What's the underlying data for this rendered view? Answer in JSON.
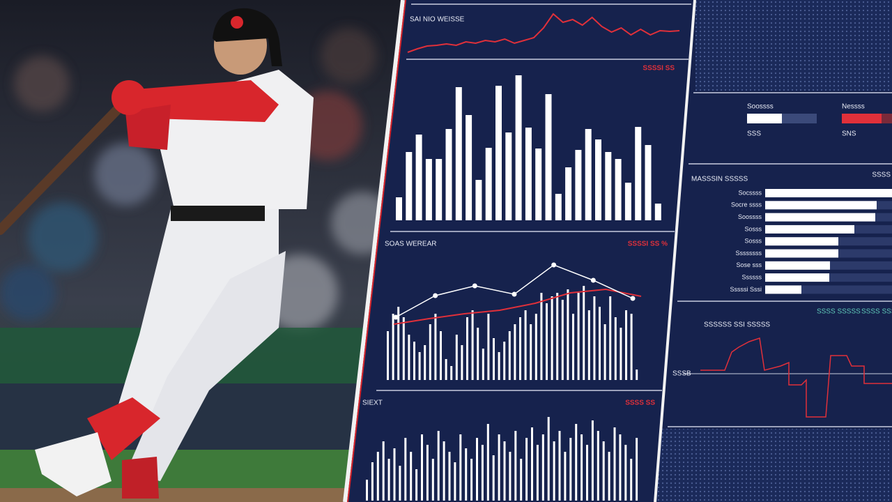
{
  "trend_panel": {
    "title": "SAI NIO WEISSE",
    "values": [
      5,
      10,
      14,
      15,
      17,
      15,
      20,
      18,
      22,
      20,
      24,
      18,
      22,
      26,
      40,
      60,
      48,
      52,
      44,
      55,
      42,
      34,
      40,
      30,
      38,
      30,
      36,
      35,
      36
    ]
  },
  "bar_panel": {
    "label": "SSSSI SS",
    "values": [
      33,
      98,
      123,
      88,
      88,
      131,
      191,
      151,
      58,
      104,
      193,
      126,
      208,
      133,
      103,
      181,
      38,
      76,
      101,
      131,
      116,
      98,
      88,
      54,
      134,
      108,
      24
    ]
  },
  "combo_panel": {
    "title": "SOAS WEREAR",
    "label": "SSSSI SS %",
    "bars": [
      70,
      95,
      105,
      90,
      65,
      55,
      40,
      50,
      80,
      95,
      70,
      30,
      20,
      65,
      50,
      90,
      100,
      75,
      45,
      95,
      60,
      40,
      55,
      70,
      80,
      90,
      100,
      80,
      95,
      125,
      110,
      120,
      125,
      115,
      130,
      95,
      125,
      135,
      100,
      120,
      105,
      80,
      120,
      90,
      75,
      100,
      95,
      15
    ],
    "line_white": [
      90,
      121,
      135,
      123,
      165,
      143,
      117
    ],
    "line_red": [
      80,
      88,
      95,
      100,
      110,
      125,
      130,
      120
    ]
  },
  "wave_panel": {
    "title": "SIEXT",
    "label": "SSSS SS",
    "bars": [
      30,
      55,
      70,
      85,
      60,
      75,
      50,
      90,
      70,
      45,
      95,
      80,
      60,
      100,
      85,
      70,
      55,
      95,
      75,
      60,
      90,
      80,
      110,
      65,
      95,
      85,
      70,
      100,
      60,
      90,
      105,
      80,
      95,
      120,
      85,
      100,
      70,
      90,
      110,
      95,
      80,
      115,
      100,
      85,
      70,
      105,
      95,
      80,
      60,
      90
    ]
  },
  "legend_panel": {
    "items": [
      {
        "name": "Soossss",
        "sub": "SSS"
      },
      {
        "name": "Nessss",
        "sub": "SNS"
      }
    ]
  },
  "hbar_panel": {
    "title": "MASSSIN SSSSS",
    "corner": "SSSS",
    "rows": [
      {
        "label": "Socssss",
        "value": 182
      },
      {
        "label": "Socre ssss",
        "value": 160
      },
      {
        "label": "Soossss",
        "value": 158
      },
      {
        "label": "Sosss",
        "value": 128
      },
      {
        "label": "Sosss",
        "value": 105
      },
      {
        "label": "Ssssssss",
        "value": 105
      },
      {
        "label": "Sose sss",
        "value": 93
      },
      {
        "label": "Ssssss",
        "value": 92
      },
      {
        "label": "Sssssi Sssi",
        "value": 52
      }
    ]
  },
  "step_panel": {
    "title": "SSSSSS SSI SSSSS",
    "legend": "SSSS SSSSS",
    "legend2": "SSSS SSSS",
    "axis": "SSSB"
  }
}
